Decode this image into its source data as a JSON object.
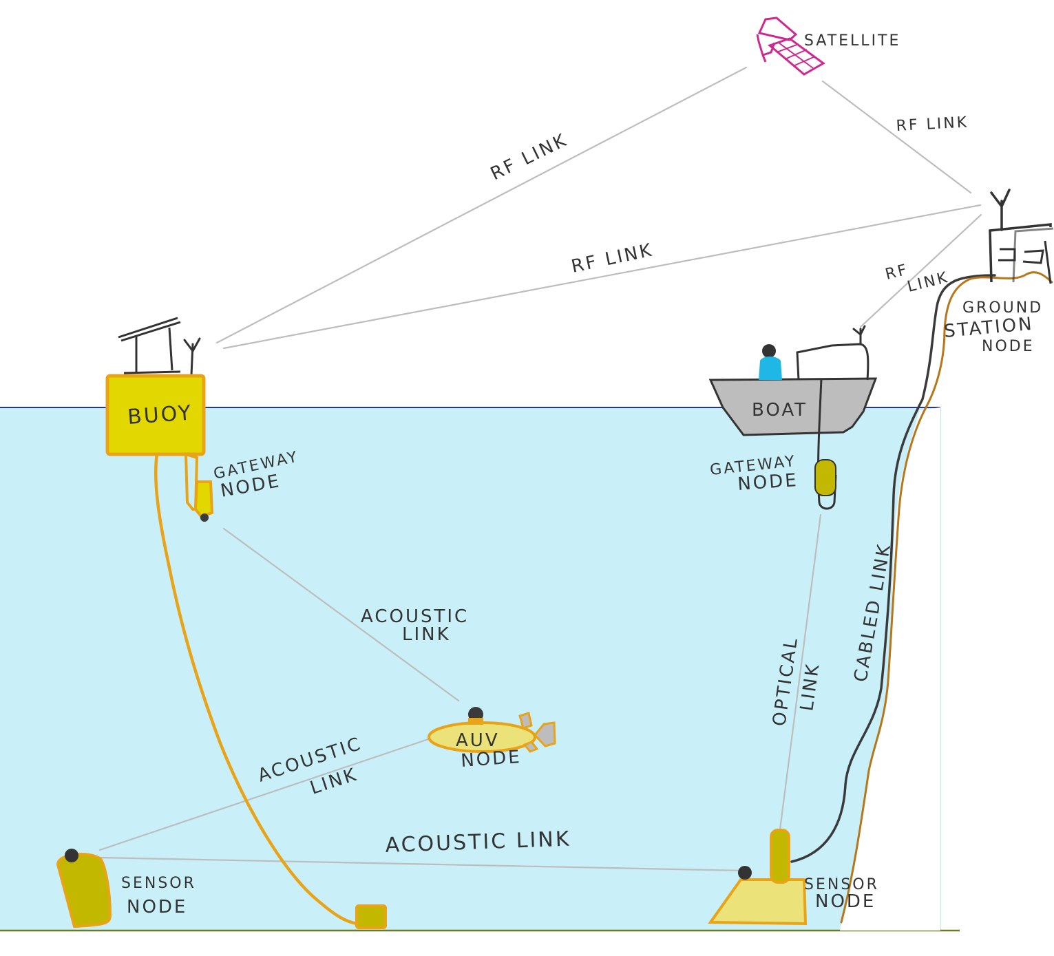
{
  "colors": {
    "water": "#c9eff8",
    "water_line": "#2233aa",
    "seabed": "#6b7a23",
    "link_line": "#bdbdbd",
    "buoy_fill": "#e2d800",
    "orange_outline": "#e8a317",
    "olive_node": "#c2b800",
    "boat_fill": "#bdbdbd",
    "satellite": "#cc2a8f",
    "person": "#1fb7e6",
    "cable_dark": "#3a3a3a",
    "cable_brown": "#b8761a",
    "auv_fill": "#ece27a"
  },
  "labels": {
    "satellite": "SATELLITE",
    "rf_link_sat_buoy": "RF LINK",
    "rf_link_sat_ground": "RF LINK",
    "rf_link_buoy_ground": "RF LINK",
    "rf_link_boat_1": "RF",
    "rf_link_boat_2": "LINK",
    "ground_station_1": "GROUND",
    "ground_station_2": "STATION",
    "ground_station_3": "NODE",
    "buoy": "BUOY",
    "boat": "BOAT",
    "gateway_left_1": "GATEWAY",
    "gateway_left_2": "NODE",
    "gateway_right_1": "GATEWAY",
    "gateway_right_2": "NODE",
    "acoustic_link_upper_1": "ACOUSTIC",
    "acoustic_link_upper_2": "LINK",
    "acoustic_link_left_1": "ACOUSTIC",
    "acoustic_link_left_2": "LINK",
    "acoustic_link_bottom": "ACOUSTIC LINK",
    "auv_1": "AUV",
    "auv_2": "NODE",
    "optical_link_1": "OPTICAL",
    "optical_link_2": "LINK",
    "cabled_link": "CABLED LINK",
    "sensor_left_1": "SENSOR",
    "sensor_left_2": "NODE",
    "sensor_right_1": "SENSOR",
    "sensor_right_2": "NODE"
  }
}
